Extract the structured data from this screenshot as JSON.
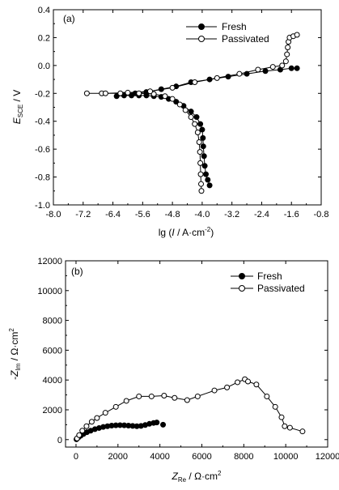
{
  "chart_data": [
    {
      "type": "line",
      "panel_label": "(a)",
      "xlabel_prefix": "lg (",
      "xlabel_var": "I",
      "xlabel_suffix": " / A·cm",
      "xlabel_sup": "-2",
      "xlabel_close": ")",
      "ylabel_var": "E",
      "ylabel_sub": "SCE",
      "ylabel_suffix": " / V",
      "xlim": [
        -8.0,
        -0.8
      ],
      "ylim": [
        -1.0,
        0.4
      ],
      "xticks": [
        "-8.0",
        "-7.2",
        "-6.4",
        "-5.6",
        "-4.8",
        "-4.0",
        "-3.2",
        "-2.4",
        "-1.6",
        "-0.8"
      ],
      "yticks": [
        "-1.0",
        "-0.8",
        "-0.6",
        "-0.4",
        "-0.2",
        "0.0",
        "0.2",
        "0.4"
      ],
      "legend_position": "top-right",
      "series": [
        {
          "name": "Fresh",
          "marker": "filled-circle",
          "points": [
            [
              -3.8,
              -0.86
            ],
            [
              -3.85,
              -0.82
            ],
            [
              -3.9,
              -0.78
            ],
            [
              -3.93,
              -0.72
            ],
            [
              -3.95,
              -0.65
            ],
            [
              -3.97,
              -0.58
            ],
            [
              -3.98,
              -0.52
            ],
            [
              -4.0,
              -0.46
            ],
            [
              -4.05,
              -0.42
            ],
            [
              -4.15,
              -0.37
            ],
            [
              -4.3,
              -0.33
            ],
            [
              -4.5,
              -0.29
            ],
            [
              -4.7,
              -0.26
            ],
            [
              -4.9,
              -0.24
            ],
            [
              -5.1,
              -0.225
            ],
            [
              -5.3,
              -0.22
            ],
            [
              -5.5,
              -0.215
            ],
            [
              -5.7,
              -0.215
            ],
            [
              -5.9,
              -0.215
            ],
            [
              -6.1,
              -0.215
            ],
            [
              -6.3,
              -0.22
            ],
            [
              -6.1,
              -0.21
            ],
            [
              -5.8,
              -0.2
            ],
            [
              -5.5,
              -0.19
            ],
            [
              -5.1,
              -0.17
            ],
            [
              -4.7,
              -0.15
            ],
            [
              -4.3,
              -0.12
            ],
            [
              -3.8,
              -0.1
            ],
            [
              -3.3,
              -0.08
            ],
            [
              -2.8,
              -0.06
            ],
            [
              -2.3,
              -0.04
            ],
            [
              -1.9,
              -0.03
            ],
            [
              -1.6,
              -0.02
            ],
            [
              -1.45,
              -0.02
            ]
          ]
        },
        {
          "name": "Passivated",
          "marker": "open-circle",
          "points": [
            [
              -4.02,
              -0.9
            ],
            [
              -4.03,
              -0.85
            ],
            [
              -4.04,
              -0.78
            ],
            [
              -4.05,
              -0.7
            ],
            [
              -4.06,
              -0.62
            ],
            [
              -4.08,
              -0.55
            ],
            [
              -4.12,
              -0.48
            ],
            [
              -4.2,
              -0.42
            ],
            [
              -4.3,
              -0.37
            ],
            [
              -4.45,
              -0.32
            ],
            [
              -4.6,
              -0.28
            ],
            [
              -4.8,
              -0.24
            ],
            [
              -5.0,
              -0.22
            ],
            [
              -5.3,
              -0.205
            ],
            [
              -5.7,
              -0.2
            ],
            [
              -6.2,
              -0.2
            ],
            [
              -6.7,
              -0.2
            ],
            [
              -7.1,
              -0.2
            ],
            [
              -6.6,
              -0.2
            ],
            [
              -6.0,
              -0.195
            ],
            [
              -5.4,
              -0.185
            ],
            [
              -4.8,
              -0.16
            ],
            [
              -4.2,
              -0.12
            ],
            [
              -3.6,
              -0.09
            ],
            [
              -3.0,
              -0.06
            ],
            [
              -2.5,
              -0.03
            ],
            [
              -2.1,
              -0.01
            ],
            [
              -1.85,
              0.0
            ],
            [
              -1.75,
              0.03
            ],
            [
              -1.72,
              0.08
            ],
            [
              -1.7,
              0.13
            ],
            [
              -1.68,
              0.17
            ],
            [
              -1.65,
              0.2
            ],
            [
              -1.55,
              0.21
            ],
            [
              -1.45,
              0.22
            ]
          ]
        }
      ]
    },
    {
      "type": "scatter",
      "panel_label": "(b)",
      "xlabel_var": "Z",
      "xlabel_sub": "Re",
      "xlabel_suffix": " / Ω·cm",
      "xlabel_sup": "2",
      "ylabel_prefix": "-",
      "ylabel_var": "Z",
      "ylabel_sub": "Im",
      "ylabel_suffix": " / Ω·cm",
      "ylabel_sup": "2",
      "xlim": [
        -500,
        12000
      ],
      "ylim": [
        -500,
        12000
      ],
      "xticks": [
        "0",
        "2000",
        "4000",
        "6000",
        "8000",
        "10000",
        "12000"
      ],
      "yticks": [
        "0",
        "2000",
        "4000",
        "6000",
        "8000",
        "10000",
        "12000"
      ],
      "legend_position": "top-right",
      "series": [
        {
          "name": "Fresh",
          "marker": "filled-circle",
          "points": [
            [
              20,
              20
            ],
            [
              60,
              80
            ],
            [
              120,
              160
            ],
            [
              220,
              260
            ],
            [
              360,
              380
            ],
            [
              520,
              500
            ],
            [
              700,
              600
            ],
            [
              900,
              700
            ],
            [
              1100,
              780
            ],
            [
              1300,
              850
            ],
            [
              1500,
              900
            ],
            [
              1700,
              940
            ],
            [
              1900,
              960
            ],
            [
              2100,
              970
            ],
            [
              2300,
              960
            ],
            [
              2500,
              940
            ],
            [
              2700,
              920
            ],
            [
              2900,
              900
            ],
            [
              3100,
              920
            ],
            [
              3300,
              980
            ],
            [
              3500,
              1060
            ],
            [
              3700,
              1120
            ],
            [
              3850,
              1150
            ],
            [
              4150,
              1000
            ]
          ]
        },
        {
          "name": "Passivated",
          "marker": "open-circle",
          "points": [
            [
              50,
              80
            ],
            [
              150,
              300
            ],
            [
              300,
              600
            ],
            [
              500,
              900
            ],
            [
              750,
              1200
            ],
            [
              1000,
              1450
            ],
            [
              1400,
              1800
            ],
            [
              1900,
              2200
            ],
            [
              2400,
              2600
            ],
            [
              3000,
              2900
            ],
            [
              3600,
              2900
            ],
            [
              4200,
              2950
            ],
            [
              4700,
              2800
            ],
            [
              5300,
              2650
            ],
            [
              5800,
              2900
            ],
            [
              6600,
              3300
            ],
            [
              7200,
              3500
            ],
            [
              7700,
              3850
            ],
            [
              8050,
              4050
            ],
            [
              8200,
              3900
            ],
            [
              8600,
              3700
            ],
            [
              9100,
              2900
            ],
            [
              9500,
              2200
            ],
            [
              9800,
              1500
            ],
            [
              9950,
              900
            ],
            [
              10200,
              800
            ],
            [
              10800,
              550
            ]
          ]
        }
      ]
    }
  ]
}
